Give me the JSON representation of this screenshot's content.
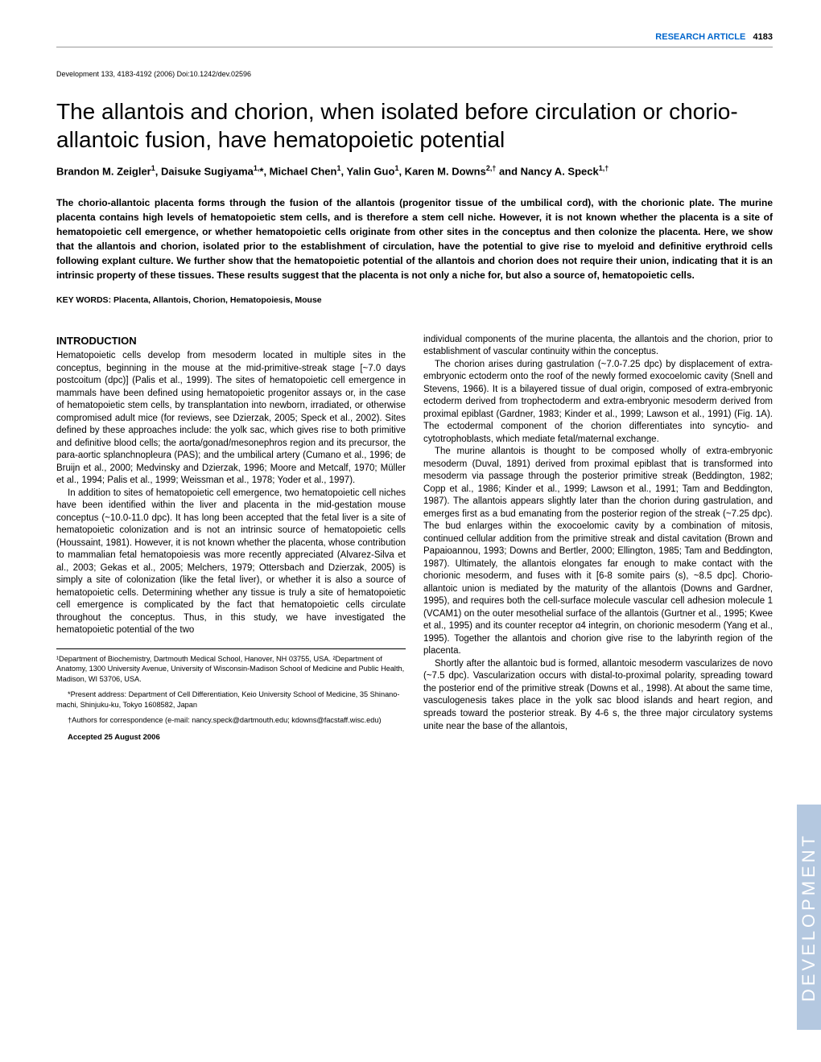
{
  "header": {
    "label": "RESEARCH ARTICLE",
    "page_number": "4183"
  },
  "citation": "Development 133, 4183-4192 (2006) Doi:10.1242/dev.02596",
  "title": "The allantois and chorion, when isolated before circulation or chorio-allantoic fusion, have hematopoietic potential",
  "authors_html": "Brandon M. Zeigler<sup>1</sup>, Daisuke Sugiyama<sup>1,</sup>*, Michael Chen<sup>1</sup>, Yalin Guo<sup>1</sup>, Karen M. Downs<sup>2,†</sup> and Nancy A. Speck<sup>1,†</sup>",
  "abstract": "The chorio-allantoic placenta forms through the fusion of the allantois (progenitor tissue of the umbilical cord), with the chorionic plate. The murine placenta contains high levels of hematopoietic stem cells, and is therefore a stem cell niche. However, it is not known whether the placenta is a site of hematopoietic cell emergence, or whether hematopoietic cells originate from other sites in the conceptus and then colonize the placenta. Here, we show that the allantois and chorion, isolated prior to the establishment of circulation, have the potential to give rise to myeloid and definitive erythroid cells following explant culture. We further show that the hematopoietic potential of the allantois and chorion does not require their union, indicating that it is an intrinsic property of these tissues. These results suggest that the placenta is not only a niche for, but also a source of, hematopoietic cells.",
  "keywords": "KEY WORDS: Placenta, Allantois, Chorion, Hematopoiesis, Mouse",
  "introduction_heading": "INTRODUCTION",
  "left_col": {
    "p1": "Hematopoietic cells develop from mesoderm located in multiple sites in the conceptus, beginning in the mouse at the mid-primitive-streak stage [~7.0 days postcoitum (dpc)] (Palis et al., 1999). The sites of hematopoietic cell emergence in mammals have been defined using hematopoietic progenitor assays or, in the case of hematopoietic stem cells, by transplantation into newborn, irradiated, or otherwise compromised adult mice (for reviews, see Dzierzak, 2005; Speck et al., 2002). Sites defined by these approaches include: the yolk sac, which gives rise to both primitive and definitive blood cells; the aorta/gonad/mesonephros region and its precursor, the para-aortic splanchnopleura (PAS); and the umbilical artery (Cumano et al., 1996; de Bruijn et al., 2000; Medvinsky and Dzierzak, 1996; Moore and Metcalf, 1970; Müller et al., 1994; Palis et al., 1999; Weissman et al., 1978; Yoder et al., 1997).",
    "p2": "In addition to sites of hematopoietic cell emergence, two hematopoietic cell niches have been identified within the liver and placenta in the mid-gestation mouse conceptus (~10.0-11.0 dpc). It has long been accepted that the fetal liver is a site of hematopoietic colonization and is not an intrinsic source of hematopoietic cells (Houssaint, 1981). However, it is not known whether the placenta, whose contribution to mammalian fetal hematopoiesis was more recently appreciated (Alvarez-Silva et al., 2003; Gekas et al., 2005; Melchers, 1979; Ottersbach and Dzierzak, 2005) is simply a site of colonization (like the fetal liver), or whether it is also a source of hematopoietic cells. Determining whether any tissue is truly a site of hematopoietic cell emergence is complicated by the fact that hematopoietic cells circulate throughout the conceptus. Thus, in this study, we have investigated the hematopoietic potential of the two"
  },
  "right_col": {
    "p1": "individual components of the murine placenta, the allantois and the chorion, prior to establishment of vascular continuity within the conceptus.",
    "p2": "The chorion arises during gastrulation (~7.0-7.25 dpc) by displacement of extra-embryonic ectoderm onto the roof of the newly formed exocoelomic cavity (Snell and Stevens, 1966). It is a bilayered tissue of dual origin, composed of extra-embryonic ectoderm derived from trophectoderm and extra-embryonic mesoderm derived from proximal epiblast (Gardner, 1983; Kinder et al., 1999; Lawson et al., 1991) (Fig. 1A). The ectodermal component of the chorion differentiates into syncytio- and cytotrophoblasts, which mediate fetal/maternal exchange.",
    "p3": "The murine allantois is thought to be composed wholly of extra-embryonic mesoderm (Duval, 1891) derived from proximal epiblast that is transformed into mesoderm via passage through the posterior primitive streak (Beddington, 1982; Copp et al., 1986; Kinder et al., 1999; Lawson et al., 1991; Tam and Beddington, 1987). The allantois appears slightly later than the chorion during gastrulation, and emerges first as a bud emanating from the posterior region of the streak (~7.25 dpc). The bud enlarges within the exocoelomic cavity by a combination of mitosis, continued cellular addition from the primitive streak and distal cavitation (Brown and Papaioannou, 1993; Downs and Bertler, 2000; Ellington, 1985; Tam and Beddington, 1987). Ultimately, the allantois elongates far enough to make contact with the chorionic mesoderm, and fuses with it [6-8 somite pairs (s), ~8.5 dpc]. Chorio-allantoic union is mediated by the maturity of the allantois (Downs and Gardner, 1995), and requires both the cell-surface molecule vascular cell adhesion molecule 1 (VCAM1) on the outer mesothelial surface of the allantois (Gurtner et al., 1995; Kwee et al., 1995) and its counter receptor α4 integrin, on chorionic mesoderm (Yang et al., 1995). Together the allantois and chorion give rise to the labyrinth region of the placenta.",
    "p4": "Shortly after the allantoic bud is formed, allantoic mesoderm vascularizes de novo (~7.5 dpc). Vascularization occurs with distal-to-proximal polarity, spreading toward the posterior end of the primitive streak (Downs et al., 1998). At about the same time, vasculogenesis takes place in the yolk sac blood islands and heart region, and spreads toward the posterior streak. By 4-6 s, the three major circulatory systems unite near the base of the allantois,"
  },
  "footnotes": {
    "affil": "¹Department of Biochemistry, Dartmouth Medical School, Hanover, NH 03755, USA. ²Department of Anatomy, 1300 University Avenue, University of Wisconsin-Madison School of Medicine and Public Health, Madison, WI 53706, USA.",
    "present": "*Present address: Department of Cell Differentiation, Keio University School of Medicine, 35 Shinano-machi, Shinjuku-ku, Tokyo 1608582, Japan",
    "corresp": "†Authors for correspondence (e-mail: nancy.speck@dartmouth.edu; kdowns@facstaff.wisc.edu)",
    "accepted": "Accepted 25 August 2006"
  },
  "side_tab": "DEVELOPMENT",
  "colors": {
    "link_blue": "#0066cc",
    "tab_bg": "#b4c8e0",
    "tab_text": "#ffffff",
    "rule": "#999999"
  }
}
